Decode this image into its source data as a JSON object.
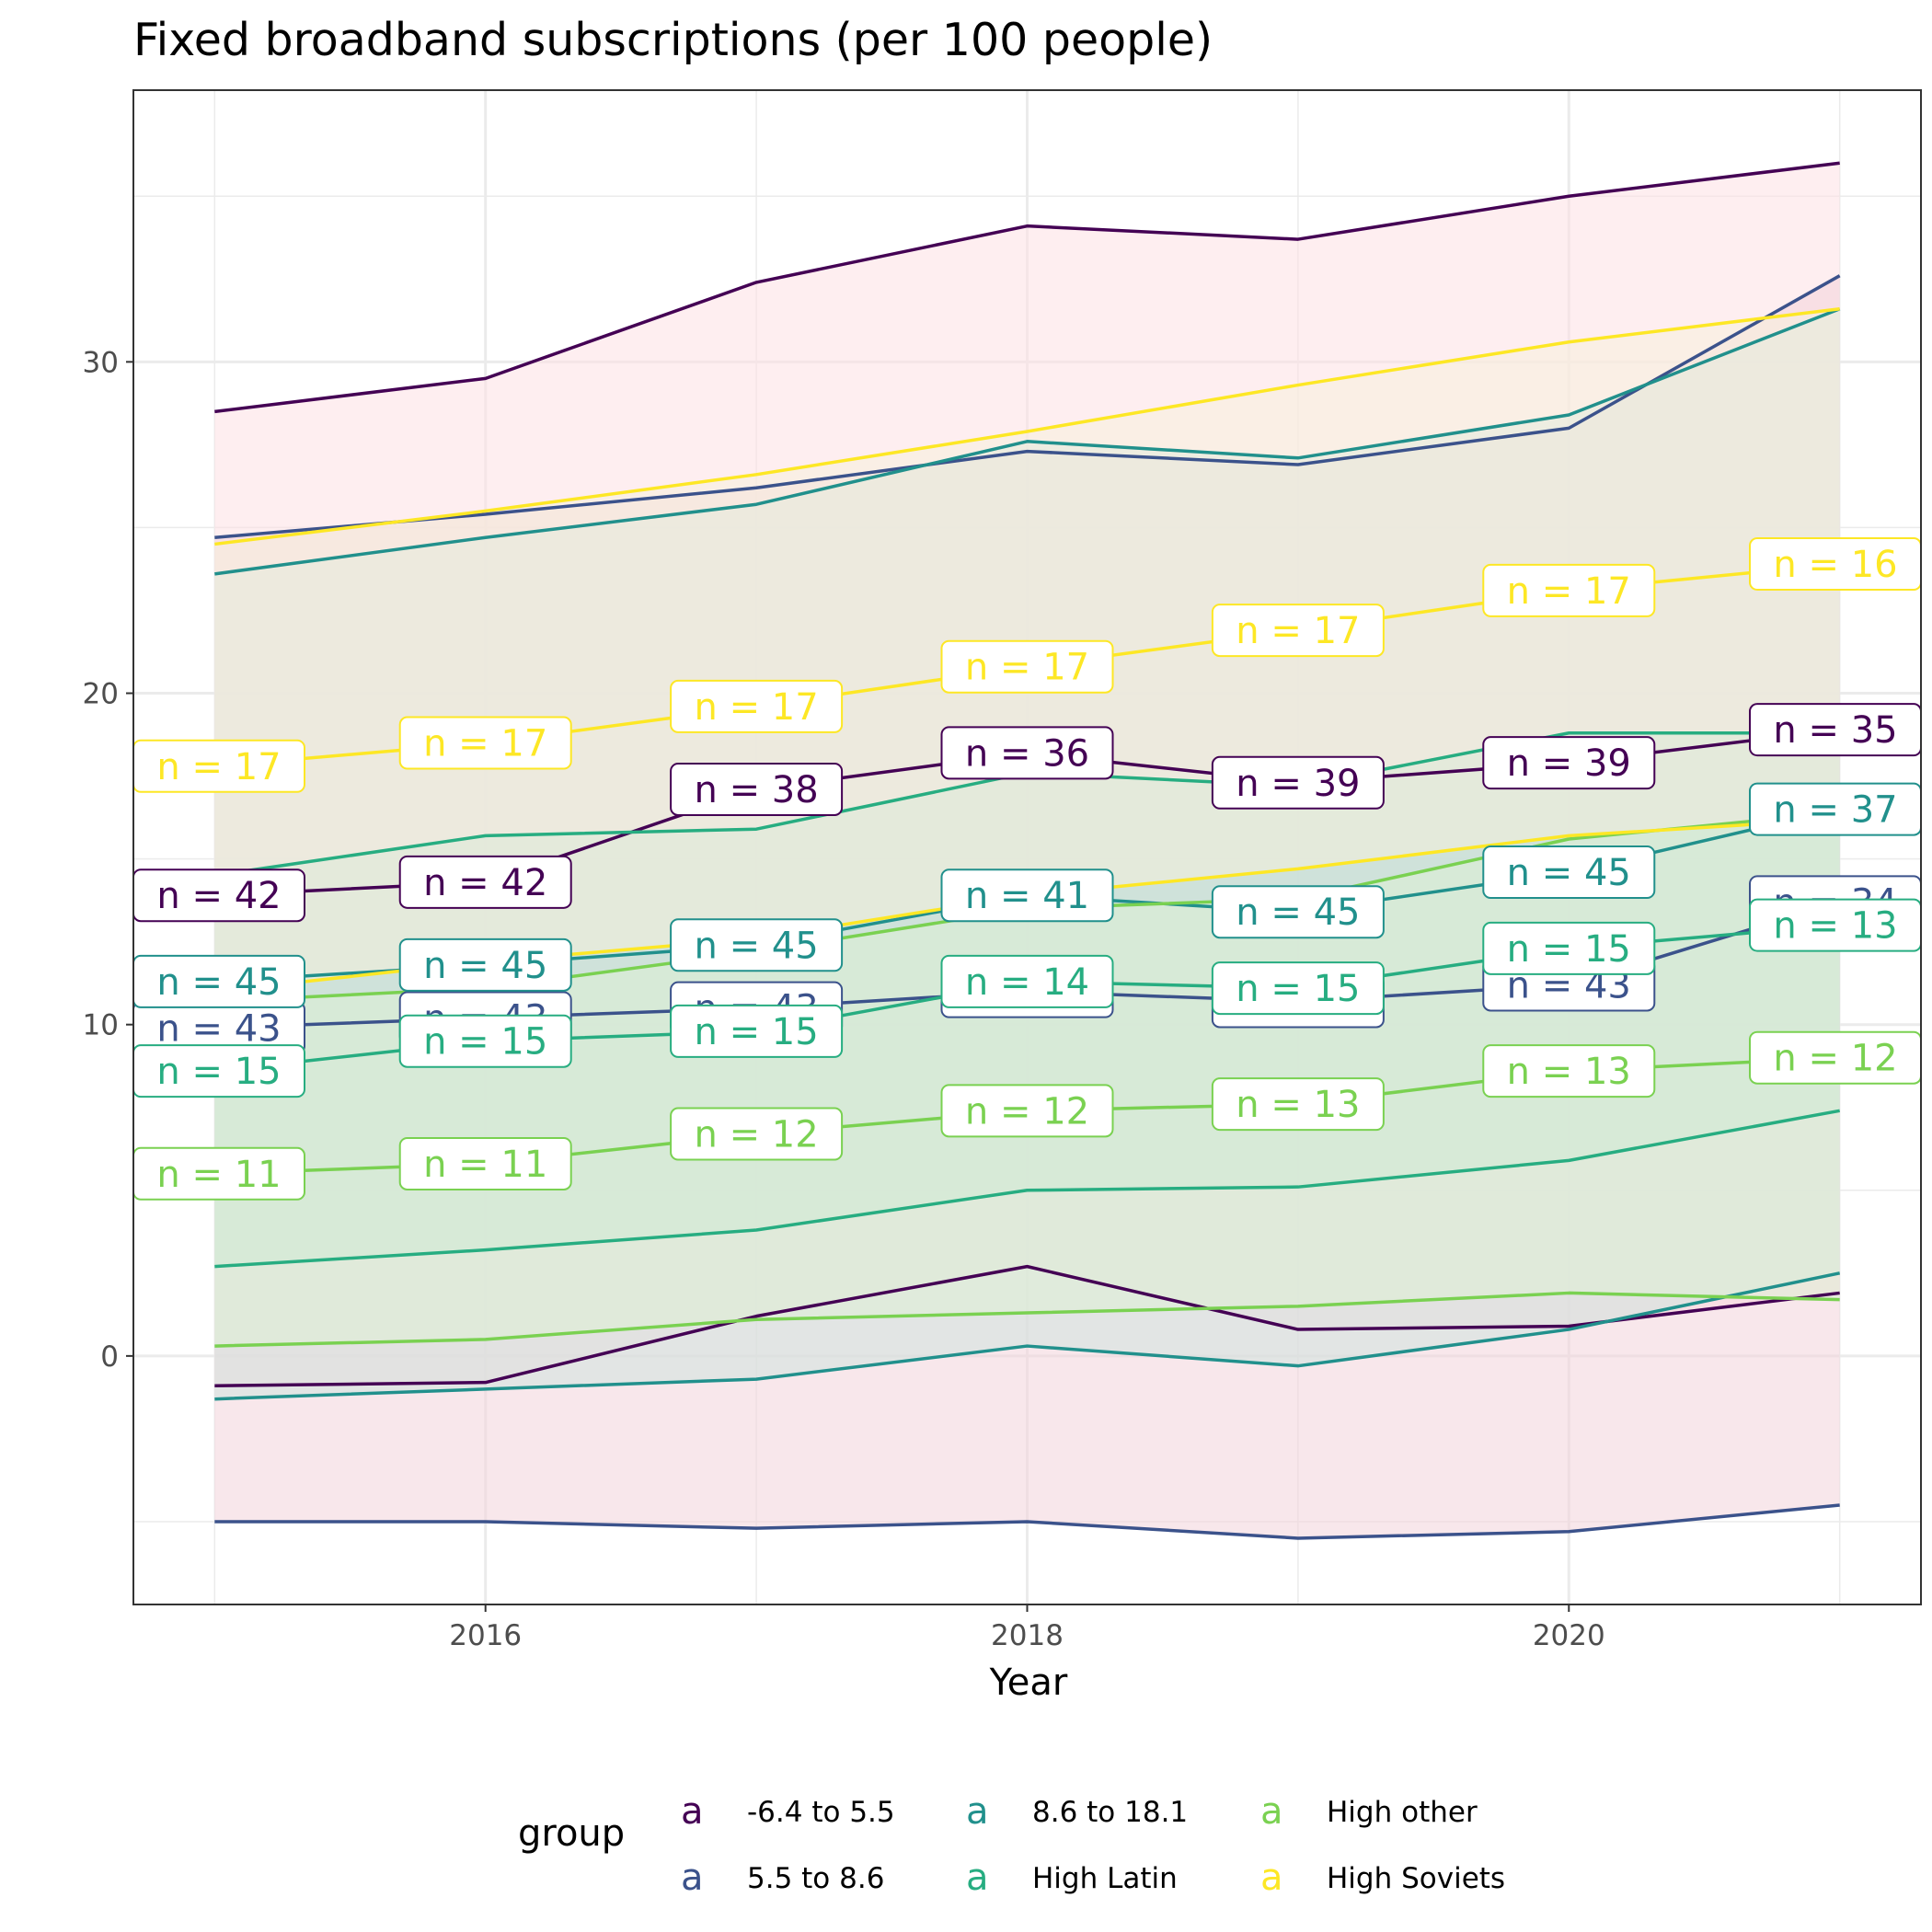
{
  "chart_data": {
    "type": "line",
    "title": "Fixed broadband subscriptions (per 100 people)",
    "xlabel": "Year",
    "ylabel": "",
    "xlim": [
      2014.7,
      2021.3
    ],
    "ylim": [
      -7.5,
      38.2
    ],
    "x_ticks": [
      2016,
      2018,
      2020
    ],
    "y_ticks": [
      0,
      10,
      20,
      30
    ],
    "grid": true,
    "legend": {
      "title": "group",
      "position": "bottom",
      "key_glyph": "a"
    },
    "x": [
      2015,
      2016,
      2017,
      2018,
      2019,
      2020,
      2021
    ],
    "series": [
      {
        "name": "-6.4 to 5.5",
        "color": "#440154",
        "fill": "#fde0e3",
        "mean": [
          13.9,
          14.3,
          17.1,
          18.2,
          17.3,
          17.9,
          18.9
        ],
        "upper": [
          28.5,
          29.5,
          32.4,
          34.1,
          33.7,
          35.0,
          36.0
        ],
        "lower": [
          -0.9,
          -0.8,
          1.2,
          2.7,
          0.8,
          0.9,
          1.9
        ],
        "n": [
          42,
          42,
          38,
          36,
          39,
          39,
          35
        ]
      },
      {
        "name": "5.5 to 8.6",
        "color": "#3b528b",
        "fill": "#f3d3da",
        "mean": [
          9.9,
          10.2,
          10.5,
          11.0,
          10.7,
          11.2,
          13.7
        ],
        "upper": [
          24.7,
          25.4,
          26.2,
          27.3,
          26.9,
          28.0,
          32.6
        ],
        "lower": [
          -5.0,
          -5.0,
          -5.2,
          -5.0,
          -5.5,
          -5.3,
          -4.5
        ],
        "n": [
          43,
          43,
          43,
          42,
          42,
          43,
          34
        ]
      },
      {
        "name": "8.6 to 18.1",
        "color": "#21908c",
        "fill": "#cfe3df",
        "mean": [
          11.3,
          11.8,
          12.4,
          13.9,
          13.4,
          14.6,
          16.5
        ],
        "upper": [
          23.6,
          24.7,
          25.7,
          27.6,
          27.1,
          28.4,
          31.6
        ],
        "lower": [
          -1.3,
          -1.0,
          -0.7,
          0.3,
          -0.3,
          0.8,
          2.5
        ],
        "n": [
          45,
          45,
          45,
          41,
          45,
          45,
          37
        ]
      },
      {
        "name": "High Latin",
        "color": "#27ad81",
        "fill": "#bfe2d5",
        "mean": [
          8.6,
          9.5,
          9.8,
          11.3,
          11.1,
          12.3,
          13.0
        ],
        "upper": [
          14.5,
          15.7,
          15.9,
          17.6,
          17.2,
          18.8,
          18.8
        ],
        "lower": [
          2.7,
          3.2,
          3.8,
          5.0,
          5.1,
          5.9,
          7.4
        ],
        "n": [
          15,
          15,
          15,
          14,
          15,
          15,
          13
        ]
      },
      {
        "name": "High other",
        "color": "#7ad151",
        "fill": "#dff0d6",
        "mean": [
          5.5,
          5.8,
          6.7,
          7.4,
          7.6,
          8.6,
          9.0
        ],
        "upper": [
          10.7,
          11.1,
          12.2,
          13.5,
          13.8,
          15.6,
          16.4
        ],
        "lower": [
          0.3,
          0.5,
          1.1,
          1.3,
          1.5,
          1.9,
          1.7
        ],
        "n": [
          11,
          11,
          12,
          12,
          13,
          13,
          12
        ]
      },
      {
        "name": "High Soviets",
        "color": "#fde725",
        "fill": "#f5f1dc",
        "mean": [
          17.8,
          18.5,
          19.6,
          20.8,
          21.9,
          23.1,
          23.9
        ],
        "upper": [
          24.5,
          25.5,
          26.6,
          27.9,
          29.3,
          30.6,
          31.6
        ],
        "lower": [
          11.0,
          11.9,
          12.6,
          13.9,
          14.7,
          15.7,
          16.2
        ],
        "n": [
          17,
          17,
          17,
          17,
          17,
          17,
          16
        ]
      }
    ]
  }
}
